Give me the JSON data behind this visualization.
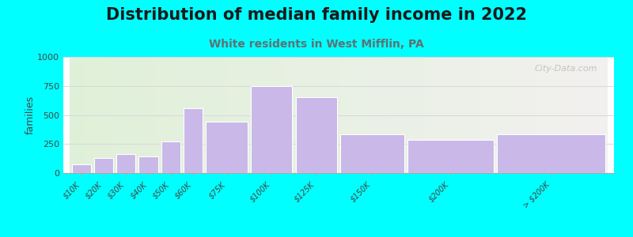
{
  "title": "Distribution of median family income in 2022",
  "subtitle": "White residents in West Mifflin, PA",
  "ylabel": "families",
  "categories": [
    "$10K",
    "$20K",
    "$30K",
    "$40K",
    "$50K",
    "$60K",
    "$75K",
    "$100K",
    "$125K",
    "$150K",
    "$200K",
    "> $200K"
  ],
  "values": [
    75,
    130,
    165,
    140,
    270,
    560,
    440,
    745,
    655,
    330,
    285,
    335
  ],
  "bar_lefts": [
    0,
    1,
    2,
    3,
    4,
    5,
    6,
    8,
    10,
    12,
    15,
    19
  ],
  "bar_widths": [
    1,
    1,
    1,
    1,
    1,
    1,
    2,
    2,
    2,
    3,
    4,
    5
  ],
  "bar_color": "#c9b8e8",
  "bar_edge_color": "#ffffff",
  "ylim": [
    0,
    1000
  ],
  "yticks": [
    0,
    250,
    500,
    750,
    1000
  ],
  "background_color": "#00ffff",
  "plot_bg_color_left": "#dff0d8",
  "plot_bg_color_right": "#f2f0ef",
  "title_fontsize": 15,
  "subtitle_fontsize": 10,
  "subtitle_color": "#607070",
  "watermark": "City-Data.com",
  "grid_color": "#d8d8d8",
  "total_width": 24
}
